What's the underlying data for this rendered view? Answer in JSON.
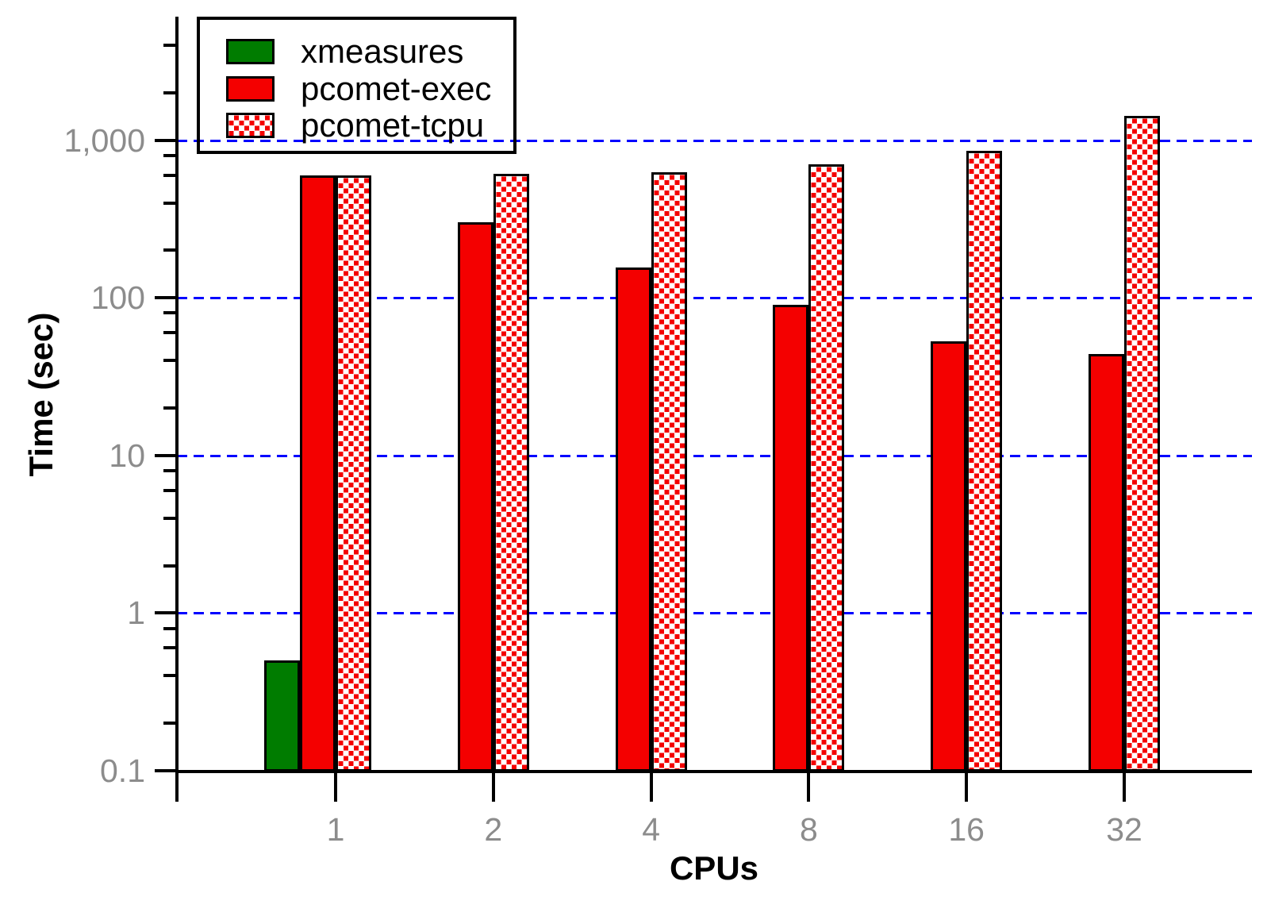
{
  "chart_data": {
    "type": "bar",
    "title": "",
    "xlabel": "CPUs",
    "ylabel": "Time (sec)",
    "y_scale": "log",
    "y_axis_range": [
      0.1,
      6000
    ],
    "grid": "dashed horizontal lines at decades",
    "legend_position": "top-left",
    "categories": [
      "1",
      "2",
      "4",
      "8",
      "16",
      "32"
    ],
    "series": [
      {
        "name": "xmeasures",
        "color": "#007c00",
        "pattern": "solid",
        "values": [
          0.5,
          null,
          null,
          null,
          null,
          null
        ]
      },
      {
        "name": "pcomet-exec",
        "color": "#f40000",
        "pattern": "solid",
        "values": [
          600,
          300,
          155,
          90,
          53,
          44
        ]
      },
      {
        "name": "pcomet-tcpu",
        "color": "#f40000",
        "pattern": "checker",
        "values": [
          600,
          610,
          625,
          700,
          860,
          1430
        ]
      }
    ],
    "y_ticks": [
      {
        "value": 0.1,
        "label": "0.1"
      },
      {
        "value": 1,
        "label": "1"
      },
      {
        "value": 10,
        "label": "10"
      },
      {
        "value": 100,
        "label": "100"
      },
      {
        "value": 1000,
        "label": "1,000"
      }
    ],
    "y_minor_tick_multipliers": [
      2,
      4,
      6,
      8
    ],
    "gridline_values": [
      1,
      10,
      100,
      1000
    ],
    "colors": {
      "grid": "#0000ff",
      "axis": "#000000",
      "tick_labels": "#8c8c8c",
      "bar_red": "#f40000",
      "bar_green": "#007c00",
      "checker_dot": "#ffffff"
    }
  }
}
